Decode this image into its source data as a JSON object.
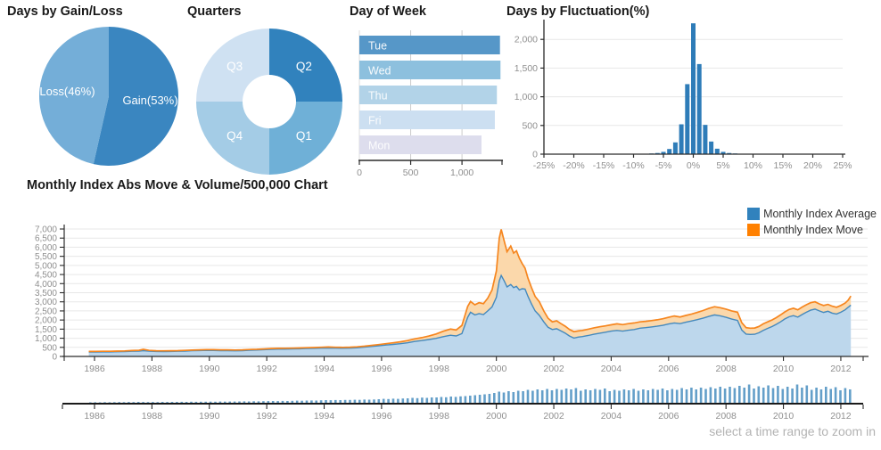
{
  "footer": {
    "hint": "select a time range to zoom in"
  },
  "legend_colors": {
    "average": "#3182bd",
    "move": "#ff8000"
  },
  "chart_data": [
    {
      "type": "pie",
      "title": "Days by Gain/Loss",
      "slices": [
        {
          "label": "Gain(53%)",
          "value": 53,
          "color": "#3a86c0"
        },
        {
          "label": "Loss(46%)",
          "value": 46,
          "color": "#74aed8"
        }
      ]
    },
    {
      "type": "pie",
      "title": "Quarters",
      "donut": true,
      "slices": [
        {
          "label": "Q2",
          "value": 25,
          "color": "#3182bd"
        },
        {
          "label": "Q1",
          "value": 25,
          "color": "#6fb0d7"
        },
        {
          "label": "Q4",
          "value": 25,
          "color": "#a4cce6"
        },
        {
          "label": "Q3",
          "value": 25,
          "color": "#cfe1f2"
        }
      ]
    },
    {
      "type": "bar",
      "title": "Day of Week",
      "orientation": "horizontal",
      "xmax": 1390,
      "xticks": [
        {
          "v": 0,
          "label": "0"
        },
        {
          "v": 500,
          "label": "500"
        },
        {
          "v": 1000,
          "label": "1,000"
        }
      ],
      "rows": [
        {
          "label": "Tue",
          "value": 1370,
          "color": "#5697c8"
        },
        {
          "label": "Wed",
          "value": 1375,
          "color": "#8dc0de"
        },
        {
          "label": "Thu",
          "value": 1340,
          "color": "#b2d3e8"
        },
        {
          "label": "Fri",
          "value": 1320,
          "color": "#ccdff1"
        },
        {
          "label": "Mon",
          "value": 1190,
          "color": "#dddded"
        }
      ]
    },
    {
      "type": "bar",
      "title": "Days by Fluctuation(%)",
      "bar_color": "#2e7cb8",
      "xlim": [
        -25,
        25
      ],
      "ylim": [
        0,
        2300
      ],
      "bins_percent": [
        -7,
        -6,
        -5,
        -4,
        -3,
        -2,
        -1,
        0,
        1,
        2,
        3,
        4,
        5,
        6,
        7
      ],
      "counts": [
        12,
        20,
        40,
        90,
        205,
        520,
        1220,
        2280,
        1570,
        510,
        220,
        95,
        40,
        20,
        12
      ],
      "yticks": [
        0,
        500,
        1000,
        1500,
        2000
      ],
      "xtick_step": 5
    },
    {
      "type": "area",
      "title": "Monthly Index Abs Move & Volume/500,000 Chart",
      "ylim": [
        0,
        7000
      ],
      "ytick_step": 500,
      "xticks": [
        1986,
        1988,
        1990,
        1992,
        1994,
        1996,
        1998,
        2000,
        2002,
        2004,
        2006,
        2008,
        2010,
        2012
      ],
      "series": [
        {
          "name": "Monthly Index Average",
          "color": "#3182bd"
        },
        {
          "name": "Monthly Index Move",
          "color": "#ff8000"
        }
      ],
      "x": [
        1985.8,
        1986.05,
        1986.3,
        1986.55,
        1986.8,
        1987.05,
        1987.3,
        1987.55,
        1987.7,
        1987.9,
        1988.15,
        1988.4,
        1988.65,
        1988.9,
        1989.15,
        1989.4,
        1989.65,
        1989.9,
        1990.15,
        1990.4,
        1990.65,
        1990.9,
        1991.15,
        1991.4,
        1991.65,
        1991.9,
        1992.15,
        1992.4,
        1992.65,
        1992.9,
        1993.15,
        1993.4,
        1993.65,
        1993.9,
        1994.15,
        1994.4,
        1994.65,
        1994.9,
        1995.15,
        1995.4,
        1995.65,
        1995.9,
        1996.15,
        1996.4,
        1996.65,
        1996.9,
        1997.15,
        1997.4,
        1997.65,
        1997.9,
        1998.15,
        1998.4,
        1998.6,
        1998.8,
        1999.0,
        1999.1,
        1999.25,
        1999.4,
        1999.55,
        1999.7,
        1999.85,
        2000.0,
        2000.1,
        2000.17,
        2000.27,
        2000.37,
        2000.5,
        2000.6,
        2000.7,
        2000.8,
        2000.9,
        2001.0,
        2001.1,
        2001.22,
        2001.35,
        2001.5,
        2001.65,
        2001.8,
        2001.95,
        2002.1,
        2002.25,
        2002.4,
        2002.55,
        2002.7,
        2002.85,
        2003.0,
        2003.2,
        2003.4,
        2003.6,
        2003.8,
        2004.0,
        2004.2,
        2004.4,
        2004.6,
        2004.8,
        2005.0,
        2005.2,
        2005.4,
        2005.6,
        2005.8,
        2006.0,
        2006.2,
        2006.4,
        2006.6,
        2006.8,
        2007.0,
        2007.2,
        2007.4,
        2007.6,
        2007.8,
        2008.0,
        2008.2,
        2008.4,
        2008.55,
        2008.7,
        2008.85,
        2009.0,
        2009.15,
        2009.3,
        2009.45,
        2009.6,
        2009.75,
        2009.9,
        2010.05,
        2010.2,
        2010.35,
        2010.5,
        2010.65,
        2010.8,
        2010.95,
        2011.1,
        2011.25,
        2011.4,
        2011.55,
        2011.7,
        2011.85,
        2012.0,
        2012.15,
        2012.25,
        2012.35
      ],
      "average": [
        240,
        246,
        250,
        252,
        258,
        268,
        282,
        296,
        312,
        292,
        276,
        271,
        276,
        282,
        296,
        312,
        322,
        332,
        326,
        318,
        311,
        306,
        320,
        342,
        354,
        370,
        392,
        399,
        403,
        409,
        422,
        434,
        444,
        454,
        463,
        453,
        449,
        456,
        474,
        507,
        547,
        587,
        627,
        662,
        702,
        747,
        822,
        872,
        932,
        992,
        1085,
        1165,
        1125,
        1255,
        2150,
        2430,
        2280,
        2350,
        2300,
        2500,
        2720,
        3250,
        4150,
        4450,
        4150,
        3820,
        3950,
        3780,
        3850,
        3650,
        3720,
        3700,
        3300,
        2900,
        2500,
        2250,
        1900,
        1600,
        1480,
        1520,
        1400,
        1280,
        1120,
        1010,
        1060,
        1090,
        1150,
        1220,
        1280,
        1330,
        1390,
        1430,
        1390,
        1440,
        1480,
        1550,
        1580,
        1620,
        1660,
        1710,
        1780,
        1840,
        1800,
        1880,
        1950,
        2020,
        2100,
        2200,
        2280,
        2230,
        2150,
        2050,
        1980,
        1450,
        1230,
        1210,
        1220,
        1300,
        1430,
        1540,
        1640,
        1760,
        1900,
        2060,
        2180,
        2240,
        2160,
        2300,
        2430,
        2540,
        2600,
        2500,
        2420,
        2480,
        2380,
        2330,
        2430,
        2560,
        2690,
        2820
      ],
      "move": [
        272,
        278,
        282,
        286,
        292,
        304,
        322,
        338,
        392,
        332,
        312,
        306,
        312,
        320,
        332,
        348,
        362,
        374,
        370,
        364,
        362,
        352,
        362,
        384,
        394,
        412,
        437,
        444,
        450,
        457,
        467,
        480,
        490,
        502,
        517,
        502,
        497,
        510,
        527,
        562,
        607,
        652,
        702,
        747,
        802,
        872,
        962,
        1032,
        1122,
        1232,
        1385,
        1505,
        1455,
        1705,
        2750,
        3020,
        2840,
        2950,
        2900,
        3200,
        3650,
        4700,
        6500,
        6980,
        6350,
        5750,
        6060,
        5680,
        5800,
        5400,
        5100,
        4850,
        4300,
        3800,
        3300,
        3000,
        2500,
        2100,
        1900,
        1960,
        1800,
        1660,
        1480,
        1360,
        1400,
        1430,
        1500,
        1570,
        1630,
        1680,
        1740,
        1790,
        1750,
        1800,
        1840,
        1900,
        1930,
        1970,
        2010,
        2070,
        2150,
        2220,
        2170,
        2250,
        2330,
        2420,
        2520,
        2640,
        2730,
        2680,
        2600,
        2500,
        2430,
        1850,
        1580,
        1550,
        1560,
        1650,
        1790,
        1900,
        2000,
        2130,
        2280,
        2450,
        2580,
        2650,
        2560,
        2710,
        2840,
        2950,
        3000,
        2890,
        2800,
        2860,
        2760,
        2700,
        2800,
        2930,
        3080,
        3320
      ]
    },
    {
      "type": "bar",
      "title": "Volume selector",
      "bar_color": "#649fc9",
      "xticks": [
        1986,
        1988,
        1990,
        1992,
        1994,
        1996,
        1998,
        2000,
        2002,
        2004,
        2006,
        2008,
        2010,
        2012
      ],
      "values": [
        0.5,
        0.6,
        0.5,
        0.7,
        0.6,
        0.7,
        0.8,
        0.7,
        0.9,
        0.8,
        1.0,
        0.9,
        0.8,
        0.9,
        0.8,
        1.0,
        0.9,
        1.0,
        1.0,
        1.1,
        1.0,
        1.2,
        1.1,
        1.2,
        1.2,
        1.3,
        1.2,
        1.4,
        1.3,
        1.4,
        1.4,
        1.5,
        1.6,
        1.5,
        1.7,
        1.6,
        1.8,
        1.9,
        2.0,
        1.9,
        2.1,
        2.0,
        2.2,
        2.4,
        2.3,
        2.5,
        2.6,
        2.5,
        2.8,
        3.0,
        2.9,
        3.1,
        3.0,
        3.2,
        3.2,
        3.4,
        3.3,
        3.6,
        3.5,
        3.7,
        4.0,
        4.4,
        4.2,
        4.6,
        4.4,
        4.8,
        5.0,
        5.5,
        5.2,
        5.8,
        5.5,
        6.0,
        6.0,
        6.5,
        6.2,
        7.0,
        6.6,
        7.2,
        7.5,
        8.0,
        8.5,
        9.0,
        9.5,
        10.0,
        11,
        12.5,
        11.5,
        13,
        12,
        13.5,
        13,
        14.5,
        13.5,
        15,
        14,
        15.5,
        14,
        15.5,
        14.5,
        16,
        15,
        16.5,
        13.5,
        15,
        14,
        15.5,
        14.5,
        16,
        13,
        14.5,
        13.5,
        15,
        14,
        15.5,
        13.5,
        15,
        14,
        15.5,
        14.5,
        16,
        14,
        15.5,
        14.5,
        16.5,
        15,
        17,
        15,
        17,
        15.5,
        17.5,
        16,
        18,
        16,
        18,
        16.5,
        19,
        17,
        20.5,
        16,
        18.5,
        17,
        19.5,
        16.5,
        19,
        15.5,
        18,
        16,
        20.5,
        17,
        19.5,
        14.5,
        17,
        15,
        18,
        15.5,
        17.5,
        14,
        16.5,
        15
      ]
    }
  ]
}
